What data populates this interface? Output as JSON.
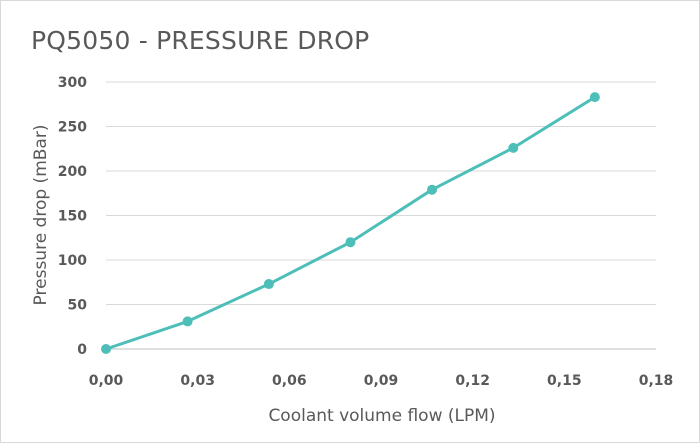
{
  "chart_data": {
    "type": "line",
    "title": "PQ5050 - PRESSURE DROP",
    "xlabel": "Coolant volume flow (LPM)",
    "ylabel": "Pressure drop (mBar)",
    "xlim": [
      0,
      0.18
    ],
    "ylim": [
      0,
      300
    ],
    "xticks": [
      "0,00",
      "0,03",
      "0,06",
      "0,09",
      "0,12",
      "0,15",
      "0,18"
    ],
    "xtick_values": [
      0,
      0.03,
      0.06,
      0.09,
      0.12,
      0.15,
      0.18
    ],
    "yticks": [
      "0",
      "50",
      "100",
      "150",
      "200",
      "250",
      "300"
    ],
    "ytick_values": [
      0,
      50,
      100,
      150,
      200,
      250,
      300
    ],
    "grid": "horizontal",
    "legend": "none",
    "series": [
      {
        "color": "#4dbfb8",
        "x": [
          0.0,
          0.0267,
          0.0533,
          0.08,
          0.1067,
          0.1333,
          0.16
        ],
        "y": [
          0,
          31,
          73,
          120,
          179,
          226,
          283
        ]
      }
    ]
  }
}
